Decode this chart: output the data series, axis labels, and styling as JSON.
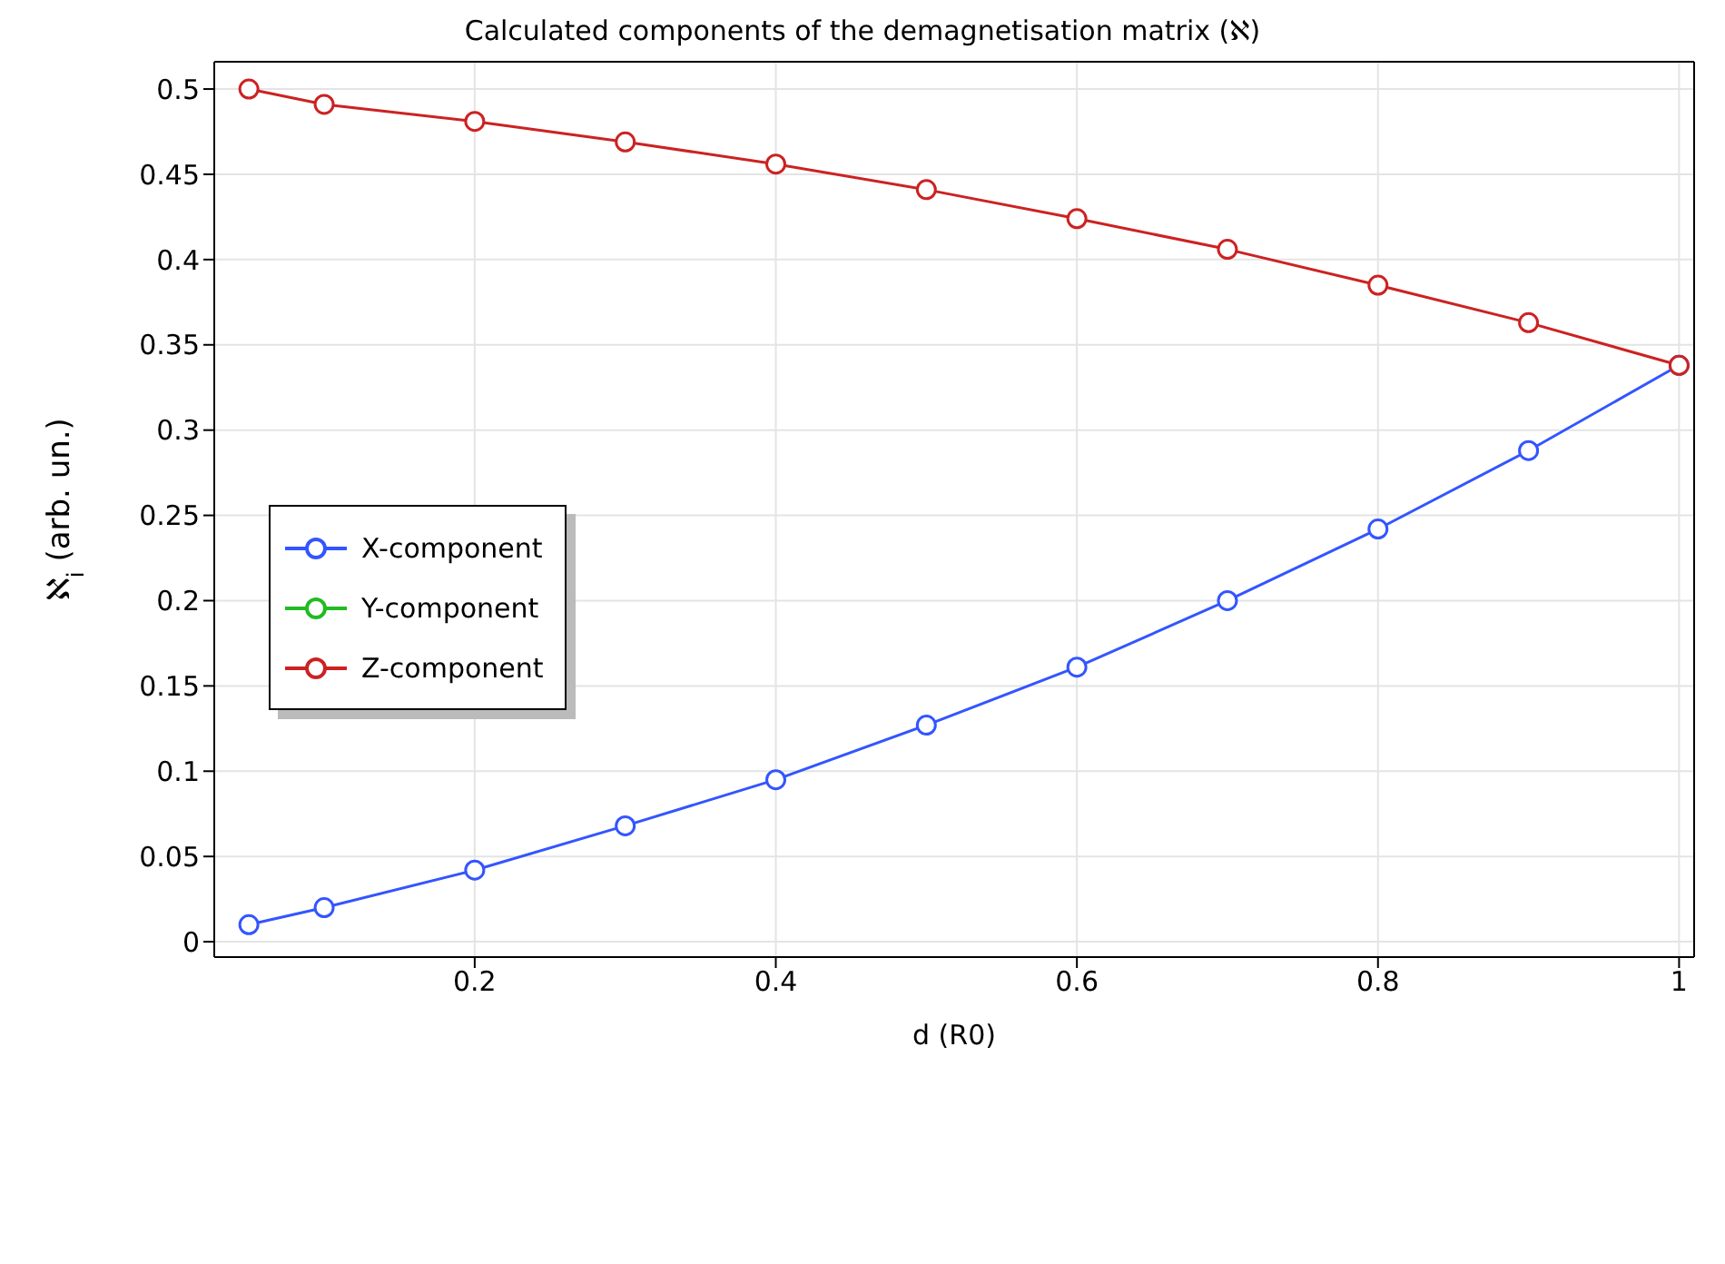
{
  "chart_data": {
    "type": "line",
    "title": "Calculated components of the demagnetisation matrix (ℵ)",
    "xlabel": "d (R0)",
    "ylabel": "ℵ$_{i}$  (arb. un.)",
    "x": [
      0.05,
      0.1,
      0.2,
      0.3,
      0.4,
      0.5,
      0.6,
      0.7,
      0.8,
      0.9,
      1.0
    ],
    "series": [
      {
        "name": "X-component",
        "color": "#3355ff",
        "values": [
          0.01,
          0.02,
          0.042,
          0.068,
          0.095,
          0.127,
          0.161,
          0.2,
          0.242,
          0.288,
          0.338
        ]
      },
      {
        "name": "Y-component",
        "color": "#22bb22",
        "values": [
          null,
          null,
          null,
          null,
          null,
          null,
          null,
          null,
          null,
          null,
          null
        ]
      },
      {
        "name": "Z-component",
        "color": "#cc2222",
        "values": [
          0.5,
          0.491,
          0.481,
          0.469,
          0.456,
          0.441,
          0.424,
          0.406,
          0.385,
          0.363,
          0.338
        ]
      }
    ],
    "xlim": [
      0.027,
      1.01
    ],
    "xticks": [
      0.2,
      0.4,
      0.6,
      0.8,
      1
    ],
    "ylim": [
      -0.009,
      0.516
    ],
    "yticks": [
      0,
      0.05,
      0.1,
      0.15,
      0.2,
      0.25,
      0.3,
      0.35,
      0.4,
      0.45,
      0.5
    ],
    "grid": true,
    "legend": "left",
    "marker": "circle",
    "line_style": "solid"
  }
}
